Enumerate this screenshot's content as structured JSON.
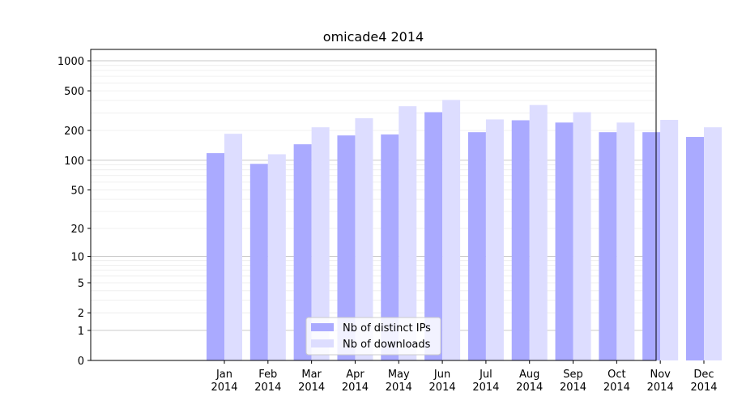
{
  "chart_data": {
    "type": "bar",
    "title": "omicade4 2014",
    "xlabel": "",
    "ylabel": "",
    "yscale": "symlog",
    "ylim": [
      0,
      1300
    ],
    "y_ticks": [
      0,
      1,
      2,
      5,
      10,
      20,
      50,
      100,
      200,
      500,
      1000
    ],
    "grid": "horizontal",
    "legend_position": "bottom-center",
    "categories": [
      [
        "Jan",
        "2014"
      ],
      [
        "Feb",
        "2014"
      ],
      [
        "Mar",
        "2014"
      ],
      [
        "Apr",
        "2014"
      ],
      [
        "May",
        "2014"
      ],
      [
        "Jun",
        "2014"
      ],
      [
        "Jul",
        "2014"
      ],
      [
        "Aug",
        "2014"
      ],
      [
        "Sep",
        "2014"
      ],
      [
        "Oct",
        "2014"
      ],
      [
        "Nov",
        "2014"
      ],
      [
        "Dec",
        "2014"
      ]
    ],
    "series": [
      {
        "name": "Nb of distinct IPs",
        "color": "#aaaaff",
        "values": [
          118,
          92,
          145,
          178,
          182,
          305,
          192,
          253,
          240,
          192,
          192,
          172
        ]
      },
      {
        "name": "Nb of downloads",
        "color": "#ddddff",
        "values": [
          185,
          115,
          215,
          265,
          350,
          405,
          258,
          360,
          305,
          240,
          255,
          215
        ]
      }
    ]
  }
}
